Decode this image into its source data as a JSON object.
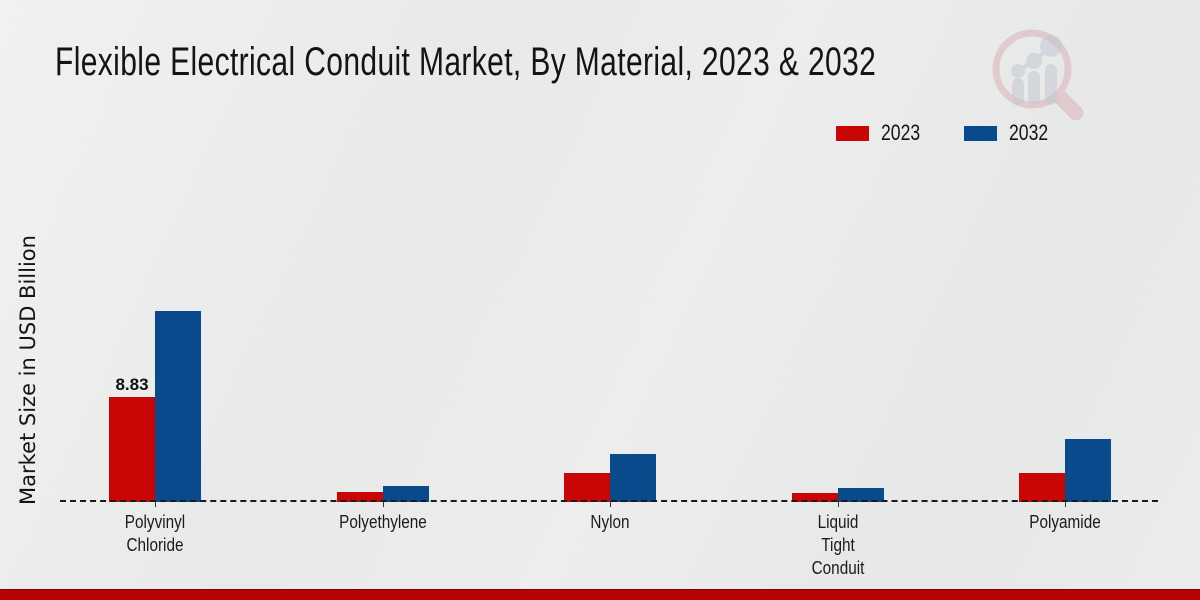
{
  "title": "Flexible Electrical Conduit Market, By Material, 2023 & 2032",
  "ylabel": "Market Size in USD Billion",
  "colors": {
    "series_2023": "#c90606",
    "series_2032": "#084a8c",
    "footer_stripe": "#b60404",
    "baseline": "#1a1a1a",
    "text": "#141414"
  },
  "logo": {
    "name": "magnifier-bar-chart-watermark"
  },
  "chart_data": {
    "type": "bar",
    "title": "Flexible Electrical Conduit Market, By Material, 2023 & 2032",
    "xlabel": "",
    "ylabel": "Market Size in USD Billion",
    "legend_position": "top-right",
    "grid": false,
    "baseline_style": "dashed",
    "ylim": [
      0,
      18
    ],
    "categories": [
      "Polyvinyl Chloride",
      "Polyethylene",
      "Nylon",
      "Liquid Tight Conduit",
      "Polyamide"
    ],
    "category_display": [
      "Polyvinyl\nChloride",
      "Polyethylene",
      "Nylon",
      "Liquid\nTight\nConduit",
      "Polyamide"
    ],
    "series": [
      {
        "name": "2023",
        "color": "#c90606",
        "values": [
          8.83,
          0.85,
          2.45,
          0.75,
          2.45
        ]
      },
      {
        "name": "2032",
        "color": "#084a8c",
        "values": [
          16.05,
          1.35,
          4.05,
          1.2,
          5.3
        ]
      }
    ],
    "annotations": [
      {
        "series": "2023",
        "category_index": 0,
        "text": "8.83"
      }
    ]
  }
}
